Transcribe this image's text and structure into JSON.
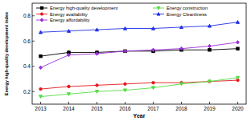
{
  "chart_data": {
    "type": "line",
    "x_label": "Year",
    "y_label": "Energy high-quality development index",
    "x": [
      2013,
      2014,
      2015,
      2016,
      2017,
      2018,
      2019,
      2020
    ],
    "xlim": [
      2012.7,
      2020.3
    ],
    "xticks": [
      2013,
      2014,
      2015,
      2016,
      2017,
      2018,
      2019,
      2020
    ],
    "ylim": [
      0.1,
      0.9
    ],
    "yticks": [
      0.2,
      0.4,
      0.6,
      0.8
    ],
    "legend": "top",
    "grid": false,
    "series": [
      {
        "name": "Energy high-quality development",
        "color": "#000000",
        "marker": "square",
        "line_style": "solid",
        "values": [
          0.48,
          0.51,
          0.51,
          0.52,
          0.52,
          0.53,
          0.53,
          0.54
        ]
      },
      {
        "name": "Energy availability",
        "color": "#e8161b",
        "marker": "circle",
        "line_style": "solid",
        "values": [
          0.22,
          0.24,
          0.25,
          0.26,
          0.27,
          0.27,
          0.28,
          0.29
        ]
      },
      {
        "name": "Energy affordability",
        "color": "#9b30d9",
        "marker": "diamond",
        "line_style": "solid",
        "values": [
          0.39,
          0.49,
          0.5,
          0.52,
          0.53,
          0.54,
          0.56,
          0.59
        ]
      },
      {
        "name": "Energy construction",
        "color": "#55dd44",
        "marker": "triangle-down",
        "line_style": "solid",
        "values": [
          0.16,
          0.18,
          0.2,
          0.21,
          0.23,
          0.26,
          0.28,
          0.31
        ]
      },
      {
        "name": "Energy Cleanliness",
        "color": "#2030e8",
        "marker": "triangle-up",
        "line_style": "solid",
        "values": [
          0.67,
          0.68,
          0.69,
          0.7,
          0.7,
          0.71,
          0.72,
          0.75
        ]
      }
    ]
  }
}
